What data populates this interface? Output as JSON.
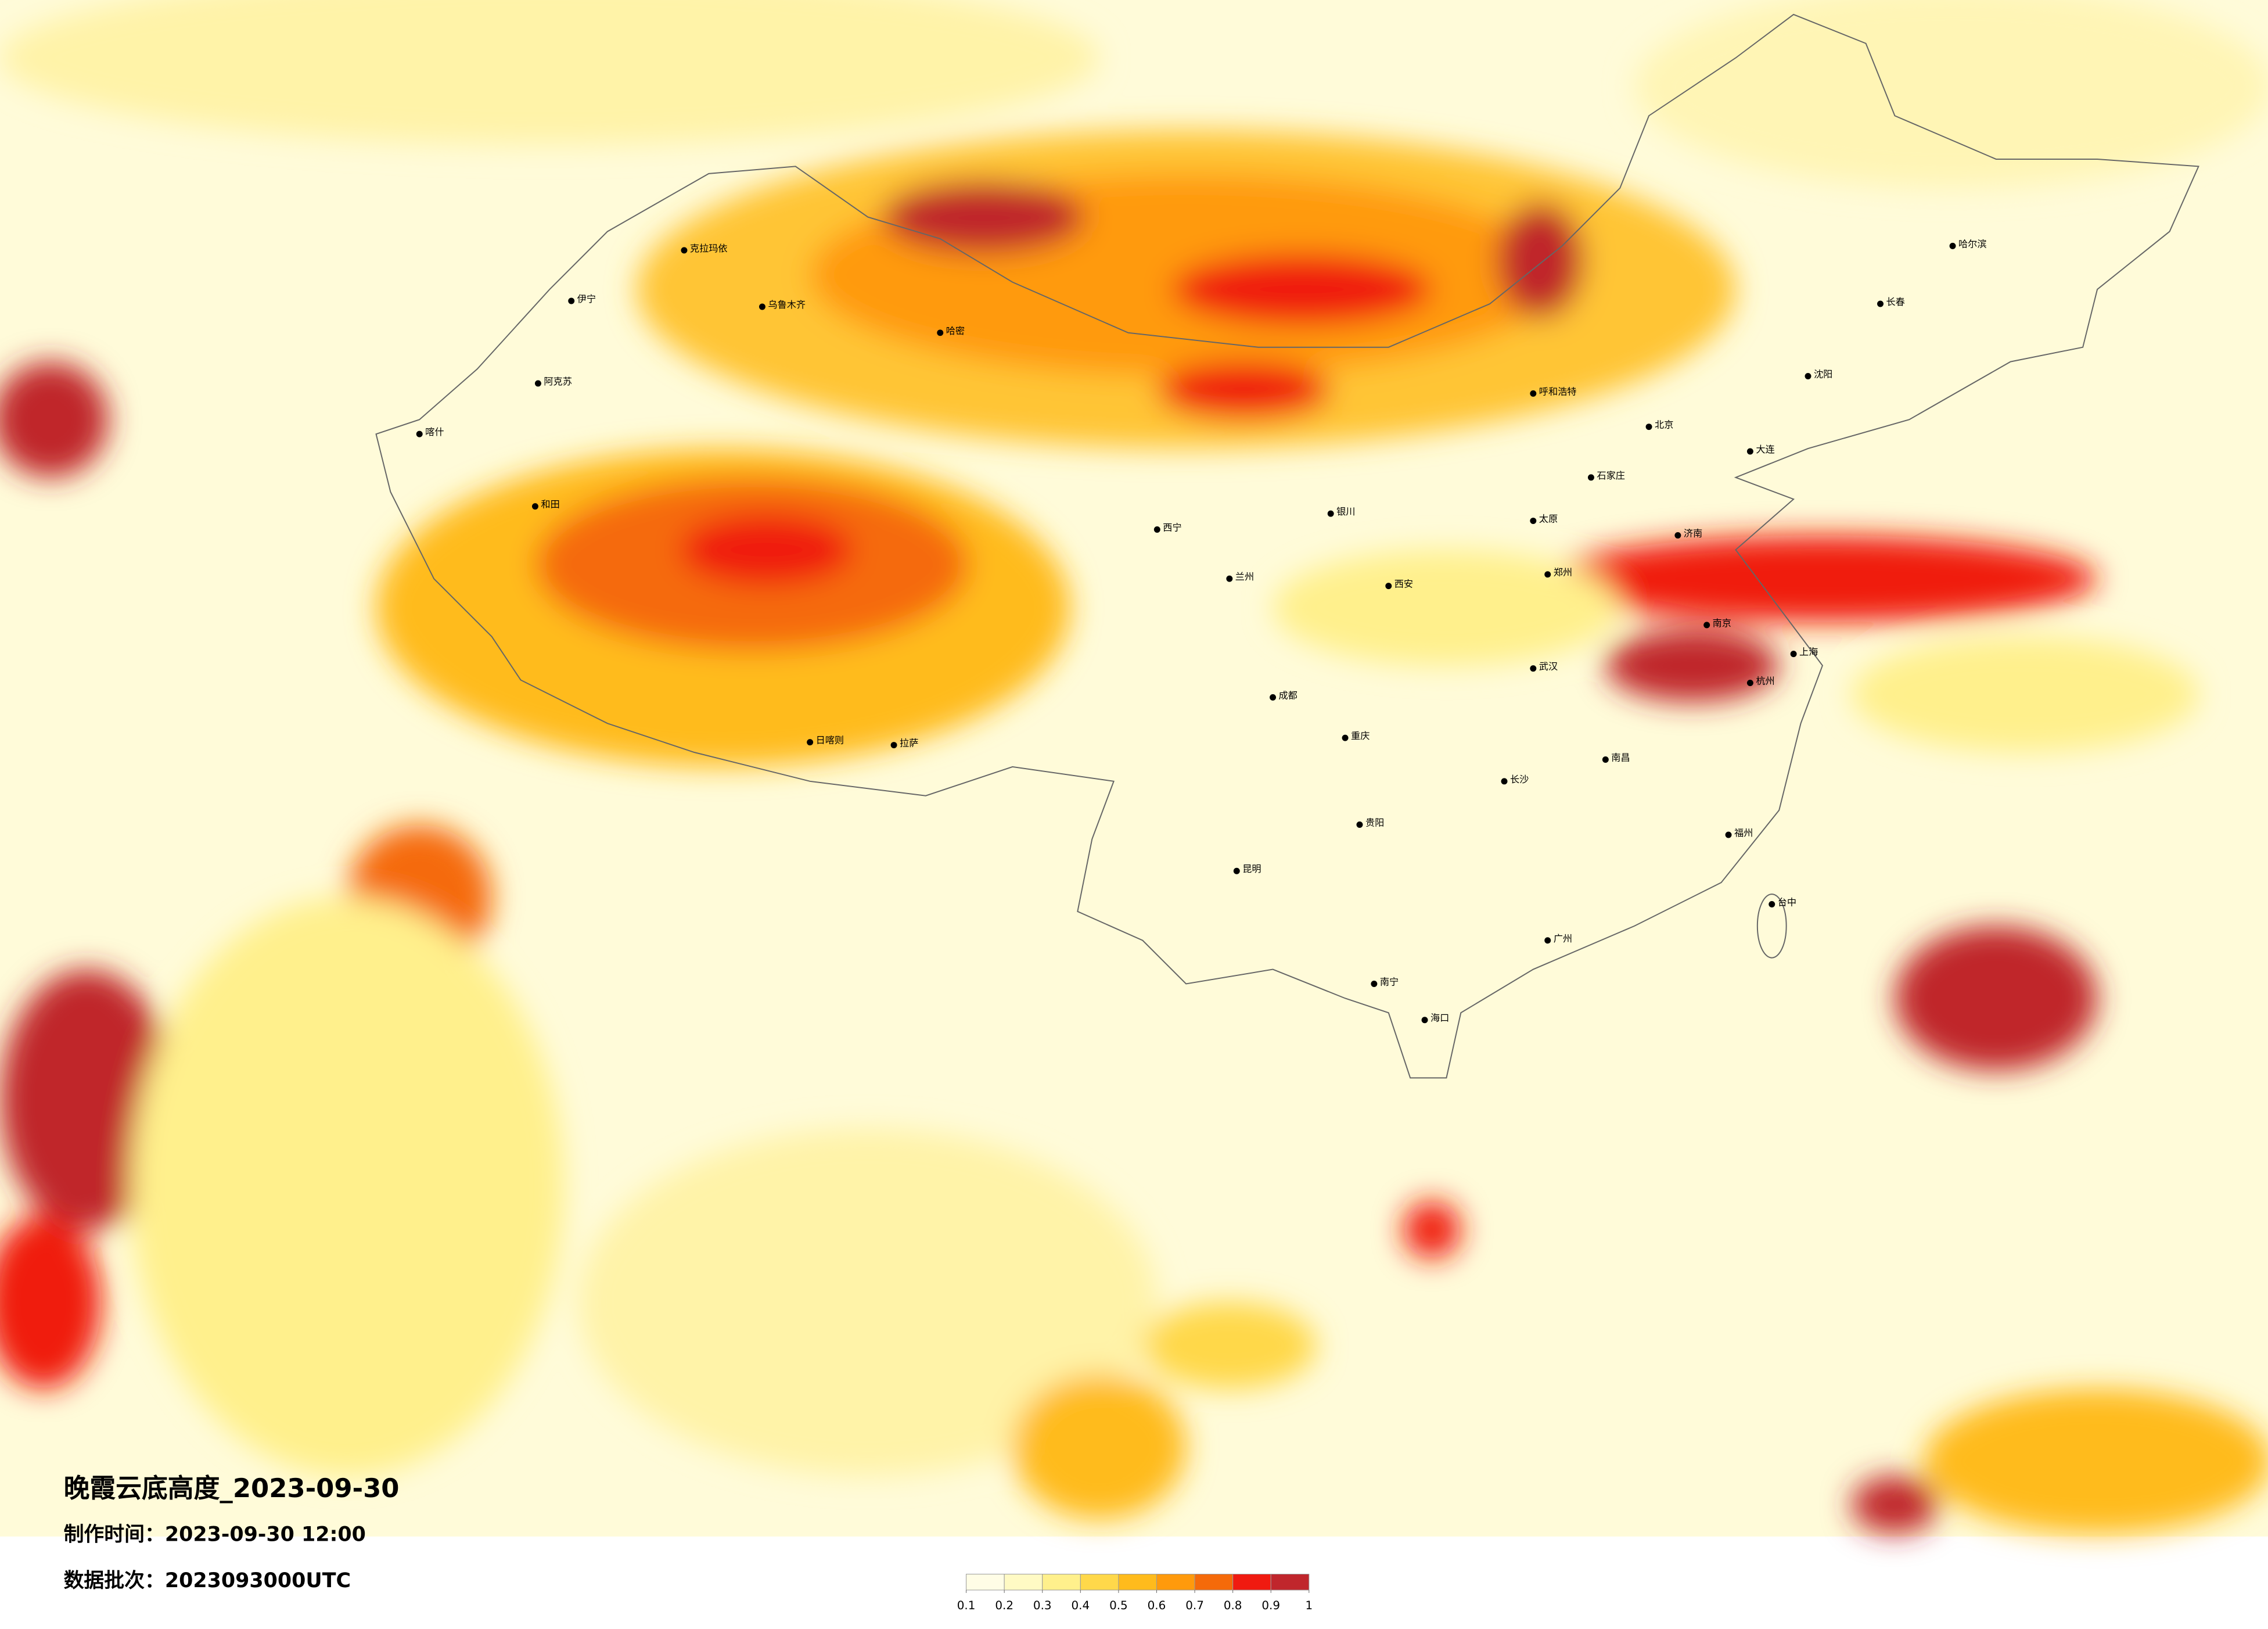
{
  "header": {
    "title": "晚霞云底高度_2023-09-30",
    "made_time": "制作时间：2023-09-30 12:00",
    "batch": "数据批次：2023093000UTC"
  },
  "legend": {
    "ticks": [
      0.1,
      0.2,
      0.3,
      0.4,
      0.5,
      0.6,
      0.7,
      0.8,
      0.9,
      1
    ],
    "colors": [
      "#fffde6",
      "#fffac4",
      "#fff08c",
      "#ffd84a",
      "#ffbb1c",
      "#ff9a0c",
      "#f56a0a",
      "#f01a10",
      "#c0262c"
    ]
  },
  "map": {
    "cities": [
      "克拉玛依",
      "伊宁",
      "乌鲁木齐",
      "阿克苏",
      "喀什",
      "哈密",
      "和田",
      "日喀则",
      "拉萨",
      "西宁",
      "兰州",
      "呼和浩特",
      "北京",
      "石家庄",
      "太原",
      "济南",
      "郑州",
      "西安",
      "成都",
      "重庆",
      "武汉",
      "南京",
      "上海",
      "杭州",
      "长沙",
      "南昌",
      "福州",
      "广州",
      "南宁",
      "昆明",
      "贵阳",
      "海口",
      "台中",
      "沈阳",
      "长春",
      "哈尔滨",
      "大连",
      "银川"
    ]
  }
}
